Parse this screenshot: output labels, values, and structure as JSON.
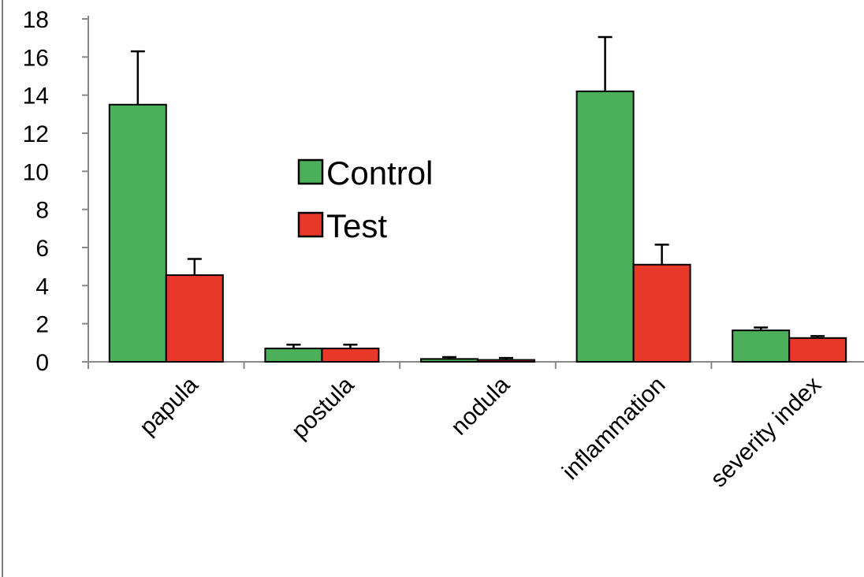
{
  "chart_data": {
    "type": "bar",
    "categories": [
      "papula",
      "postula",
      "nodula",
      "inflammation",
      "severity index"
    ],
    "series": [
      {
        "name": "Control",
        "color": "#4caf5a",
        "values": [
          13.5,
          0.7,
          0.15,
          14.2,
          1.65
        ],
        "errors": [
          2.8,
          0.2,
          0.1,
          2.85,
          0.15
        ]
      },
      {
        "name": "Test",
        "color": "#e8382a",
        "values": [
          4.55,
          0.7,
          0.1,
          5.1,
          1.25
        ],
        "errors": [
          0.85,
          0.2,
          0.1,
          1.05,
          0.1
        ]
      }
    ],
    "ylim": [
      0,
      18
    ],
    "yticks": [
      0,
      2,
      4,
      6,
      8,
      10,
      12,
      14,
      16,
      18
    ],
    "legend_position": "center",
    "grid": false
  }
}
